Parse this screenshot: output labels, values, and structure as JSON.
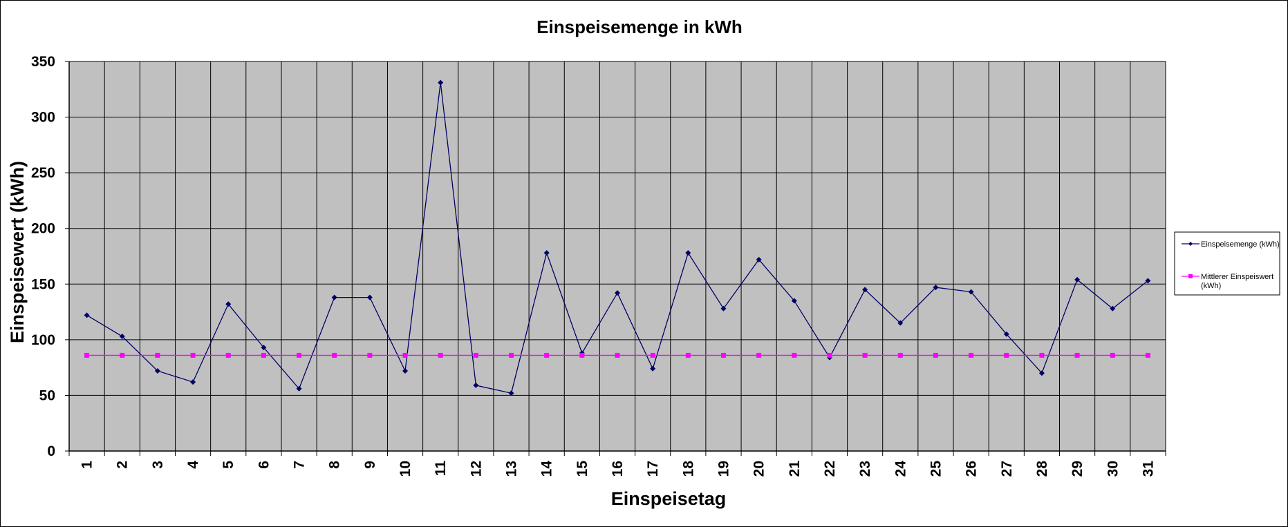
{
  "chart_data": {
    "type": "line",
    "title": "Einspeisemenge in kWh",
    "xlabel": "Einspeisetag",
    "ylabel": "Einspeisewert  (kWh)",
    "ylim": [
      0,
      350
    ],
    "yticks": [
      0,
      50,
      100,
      150,
      200,
      250,
      300,
      350
    ],
    "grid": true,
    "legend_position": "right",
    "categories": [
      "1",
      "2",
      "3",
      "4",
      "5",
      "6",
      "7",
      "8",
      "9",
      "10",
      "11",
      "12",
      "13",
      "14",
      "15",
      "16",
      "17",
      "18",
      "19",
      "20",
      "21",
      "22",
      "23",
      "24",
      "25",
      "26",
      "27",
      "28",
      "29",
      "30",
      "31"
    ],
    "series": [
      {
        "name": "Einspeisemenge (kWh)",
        "color": "#000066",
        "marker": "diamond",
        "values": [
          122,
          103,
          72,
          62,
          132,
          93,
          56,
          138,
          138,
          72,
          331,
          59,
          52,
          178,
          88,
          142,
          74,
          178,
          128,
          172,
          135,
          84,
          145,
          115,
          147,
          143,
          105,
          70,
          154,
          128,
          153
        ]
      },
      {
        "name": "Mittlerer Einspeiswert (kWh)",
        "legend_lines": [
          "Mittlerer Einspeiswert",
          "(kWh)"
        ],
        "color": "#ff00ff",
        "marker": "square",
        "values": [
          86,
          86,
          86,
          86,
          86,
          86,
          86,
          86,
          86,
          86,
          86,
          86,
          86,
          86,
          86,
          86,
          86,
          86,
          86,
          86,
          86,
          86,
          86,
          86,
          86,
          86,
          86,
          86,
          86,
          86,
          86
        ]
      }
    ],
    "plot_background": "#c0c0c0",
    "grid_color": "#000000"
  }
}
